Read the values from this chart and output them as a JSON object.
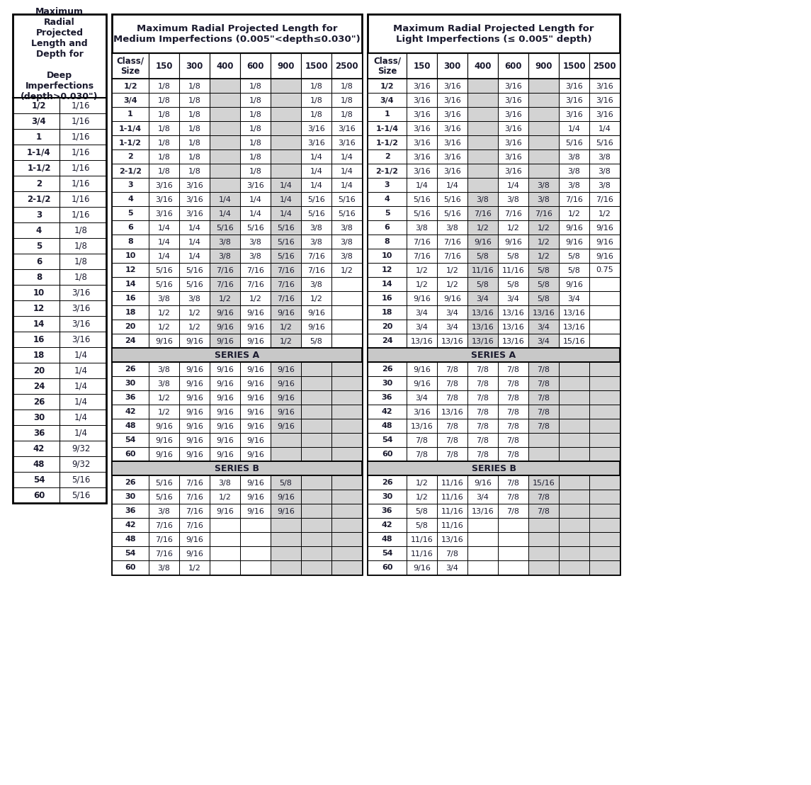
{
  "left_box_title": "Maximum\nRadial\nProjected\nLength and\nDepth for\n\nDeep\nImperfections\n(depth>0.030\")",
  "left_box_data": [
    [
      "1/2",
      "1/16"
    ],
    [
      "3/4",
      "1/16"
    ],
    [
      "1",
      "1/16"
    ],
    [
      "1-1/4",
      "1/16"
    ],
    [
      "1-1/2",
      "1/16"
    ],
    [
      "2",
      "1/16"
    ],
    [
      "2-1/2",
      "1/16"
    ],
    [
      "3",
      "1/16"
    ],
    [
      "4",
      "1/8"
    ],
    [
      "5",
      "1/8"
    ],
    [
      "6",
      "1/8"
    ],
    [
      "8",
      "1/8"
    ],
    [
      "10",
      "3/16"
    ],
    [
      "12",
      "3/16"
    ],
    [
      "14",
      "3/16"
    ],
    [
      "16",
      "3/16"
    ],
    [
      "18",
      "1/4"
    ],
    [
      "20",
      "1/4"
    ],
    [
      "24",
      "1/4"
    ],
    [
      "26",
      "1/4"
    ],
    [
      "30",
      "1/4"
    ],
    [
      "36",
      "1/4"
    ],
    [
      "42",
      "9/32"
    ],
    [
      "48",
      "9/32"
    ],
    [
      "54",
      "5/16"
    ],
    [
      "60",
      "5/16"
    ]
  ],
  "medium_title": "Maximum Radial Projected Length for\nMedium Imperfections (0.005\"<depth≤0.030\")",
  "medium_cols": [
    "Class/\nSize",
    "150",
    "300",
    "400",
    "600",
    "900",
    "1500",
    "2500"
  ],
  "medium_data": [
    [
      "1/2",
      "1/8",
      "1/8",
      "",
      "1/8",
      "",
      "1/8",
      "1/8"
    ],
    [
      "3/4",
      "1/8",
      "1/8",
      "",
      "1/8",
      "",
      "1/8",
      "1/8"
    ],
    [
      "1",
      "1/8",
      "1/8",
      "",
      "1/8",
      "",
      "1/8",
      "1/8"
    ],
    [
      "1-1/4",
      "1/8",
      "1/8",
      "",
      "1/8",
      "",
      "3/16",
      "3/16"
    ],
    [
      "1-1/2",
      "1/8",
      "1/8",
      "",
      "1/8",
      "",
      "3/16",
      "3/16"
    ],
    [
      "2",
      "1/8",
      "1/8",
      "",
      "1/8",
      "",
      "1/4",
      "1/4"
    ],
    [
      "2-1/2",
      "1/8",
      "1/8",
      "",
      "1/8",
      "",
      "1/4",
      "1/4"
    ],
    [
      "3",
      "3/16",
      "3/16",
      "",
      "3/16",
      "1/4",
      "1/4",
      "1/4"
    ],
    [
      "4",
      "3/16",
      "3/16",
      "1/4",
      "1/4",
      "1/4",
      "5/16",
      "5/16"
    ],
    [
      "5",
      "3/16",
      "3/16",
      "1/4",
      "1/4",
      "1/4",
      "5/16",
      "5/16"
    ],
    [
      "6",
      "1/4",
      "1/4",
      "5/16",
      "5/16",
      "5/16",
      "3/8",
      "3/8"
    ],
    [
      "8",
      "1/4",
      "1/4",
      "3/8",
      "3/8",
      "5/16",
      "3/8",
      "3/8"
    ],
    [
      "10",
      "1/4",
      "1/4",
      "3/8",
      "3/8",
      "5/16",
      "7/16",
      "3/8"
    ],
    [
      "12",
      "5/16",
      "5/16",
      "7/16",
      "7/16",
      "7/16",
      "7/16",
      "1/2"
    ],
    [
      "14",
      "5/16",
      "5/16",
      "7/16",
      "7/16",
      "7/16",
      "3/8",
      ""
    ],
    [
      "16",
      "3/8",
      "3/8",
      "1/2",
      "1/2",
      "7/16",
      "1/2",
      ""
    ],
    [
      "18",
      "1/2",
      "1/2",
      "9/16",
      "9/16",
      "9/16",
      "9/16",
      ""
    ],
    [
      "20",
      "1/2",
      "1/2",
      "9/16",
      "9/16",
      "1/2",
      "9/16",
      ""
    ],
    [
      "24",
      "9/16",
      "9/16",
      "9/16",
      "9/16",
      "1/2",
      "5/8",
      ""
    ]
  ],
  "medium_seriesA": [
    [
      "26",
      "3/8",
      "9/16",
      "9/16",
      "9/16",
      "9/16",
      "",
      ""
    ],
    [
      "30",
      "3/8",
      "9/16",
      "9/16",
      "9/16",
      "9/16",
      "",
      ""
    ],
    [
      "36",
      "1/2",
      "9/16",
      "9/16",
      "9/16",
      "9/16",
      "",
      ""
    ],
    [
      "42",
      "1/2",
      "9/16",
      "9/16",
      "9/16",
      "9/16",
      "",
      ""
    ],
    [
      "48",
      "9/16",
      "9/16",
      "9/16",
      "9/16",
      "9/16",
      "",
      ""
    ],
    [
      "54",
      "9/16",
      "9/16",
      "9/16",
      "9/16",
      "",
      "",
      ""
    ],
    [
      "60",
      "9/16",
      "9/16",
      "9/16",
      "9/16",
      "",
      "",
      ""
    ]
  ],
  "medium_seriesB": [
    [
      "26",
      "5/16",
      "7/16",
      "3/8",
      "9/16",
      "5/8",
      "",
      ""
    ],
    [
      "30",
      "5/16",
      "7/16",
      "1/2",
      "9/16",
      "9/16",
      "",
      ""
    ],
    [
      "36",
      "3/8",
      "7/16",
      "9/16",
      "9/16",
      "9/16",
      "",
      ""
    ],
    [
      "42",
      "7/16",
      "7/16",
      "",
      "",
      "",
      "",
      ""
    ],
    [
      "48",
      "7/16",
      "9/16",
      "",
      "",
      "",
      "",
      ""
    ],
    [
      "54",
      "7/16",
      "9/16",
      "",
      "",
      "",
      "",
      ""
    ],
    [
      "60",
      "3/8",
      "1/2",
      "",
      "",
      "",
      "",
      ""
    ]
  ],
  "light_title": "Maximum Radial Projected Length for\nLight Imperfections (≤ 0.005\" depth)",
  "light_cols": [
    "Class/\nSize",
    "150",
    "300",
    "400",
    "600",
    "900",
    "1500",
    "2500"
  ],
  "light_data": [
    [
      "1/2",
      "3/16",
      "3/16",
      "",
      "3/16",
      "",
      "3/16",
      "3/16"
    ],
    [
      "3/4",
      "3/16",
      "3/16",
      "",
      "3/16",
      "",
      "3/16",
      "3/16"
    ],
    [
      "1",
      "3/16",
      "3/16",
      "",
      "3/16",
      "",
      "3/16",
      "3/16"
    ],
    [
      "1-1/4",
      "3/16",
      "3/16",
      "",
      "3/16",
      "",
      "1/4",
      "1/4"
    ],
    [
      "1-1/2",
      "3/16",
      "3/16",
      "",
      "3/16",
      "",
      "5/16",
      "5/16"
    ],
    [
      "2",
      "3/16",
      "3/16",
      "",
      "3/16",
      "",
      "3/8",
      "3/8"
    ],
    [
      "2-1/2",
      "3/16",
      "3/16",
      "",
      "3/16",
      "",
      "3/8",
      "3/8"
    ],
    [
      "3",
      "1/4",
      "1/4",
      "",
      "1/4",
      "3/8",
      "3/8",
      "3/8"
    ],
    [
      "4",
      "5/16",
      "5/16",
      "3/8",
      "3/8",
      "3/8",
      "7/16",
      "7/16"
    ],
    [
      "5",
      "5/16",
      "5/16",
      "7/16",
      "7/16",
      "7/16",
      "1/2",
      "1/2"
    ],
    [
      "6",
      "3/8",
      "3/8",
      "1/2",
      "1/2",
      "1/2",
      "9/16",
      "9/16"
    ],
    [
      "8",
      "7/16",
      "7/16",
      "9/16",
      "9/16",
      "1/2",
      "9/16",
      "9/16"
    ],
    [
      "10",
      "7/16",
      "7/16",
      "5/8",
      "5/8",
      "1/2",
      "5/8",
      "9/16"
    ],
    [
      "12",
      "1/2",
      "1/2",
      "11/16",
      "11/16",
      "5/8",
      "5/8",
      "0.75"
    ],
    [
      "14",
      "1/2",
      "1/2",
      "5/8",
      "5/8",
      "5/8",
      "9/16",
      ""
    ],
    [
      "16",
      "9/16",
      "9/16",
      "3/4",
      "3/4",
      "5/8",
      "3/4",
      ""
    ],
    [
      "18",
      "3/4",
      "3/4",
      "13/16",
      "13/16",
      "13/16",
      "13/16",
      ""
    ],
    [
      "20",
      "3/4",
      "3/4",
      "13/16",
      "13/16",
      "3/4",
      "13/16",
      ""
    ],
    [
      "24",
      "13/16",
      "13/16",
      "13/16",
      "13/16",
      "3/4",
      "15/16",
      ""
    ]
  ],
  "light_seriesA": [
    [
      "26",
      "9/16",
      "7/8",
      "7/8",
      "7/8",
      "7/8",
      "",
      ""
    ],
    [
      "30",
      "9/16",
      "7/8",
      "7/8",
      "7/8",
      "7/8",
      "",
      ""
    ],
    [
      "36",
      "3/4",
      "7/8",
      "7/8",
      "7/8",
      "7/8",
      "",
      ""
    ],
    [
      "42",
      "3/16",
      "13/16",
      "7/8",
      "7/8",
      "7/8",
      "",
      ""
    ],
    [
      "48",
      "13/16",
      "7/8",
      "7/8",
      "7/8",
      "7/8",
      "",
      ""
    ],
    [
      "54",
      "7/8",
      "7/8",
      "7/8",
      "7/8",
      "",
      "",
      ""
    ],
    [
      "60",
      "7/8",
      "7/8",
      "7/8",
      "7/8",
      "",
      "",
      ""
    ]
  ],
  "light_seriesB": [
    [
      "26",
      "1/2",
      "11/16",
      "9/16",
      "7/8",
      "15/16",
      "",
      ""
    ],
    [
      "30",
      "1/2",
      "11/16",
      "3/4",
      "7/8",
      "7/8",
      "",
      ""
    ],
    [
      "36",
      "5/8",
      "11/16",
      "13/16",
      "7/8",
      "7/8",
      "",
      ""
    ],
    [
      "42",
      "5/8",
      "11/16",
      "",
      "",
      "",
      "",
      ""
    ],
    [
      "48",
      "11/16",
      "13/16",
      "",
      "",
      "",
      "",
      ""
    ],
    [
      "54",
      "11/16",
      "7/8",
      "",
      "",
      "",
      "",
      ""
    ],
    [
      "60",
      "9/16",
      "3/4",
      "",
      "",
      "",
      "",
      ""
    ]
  ]
}
